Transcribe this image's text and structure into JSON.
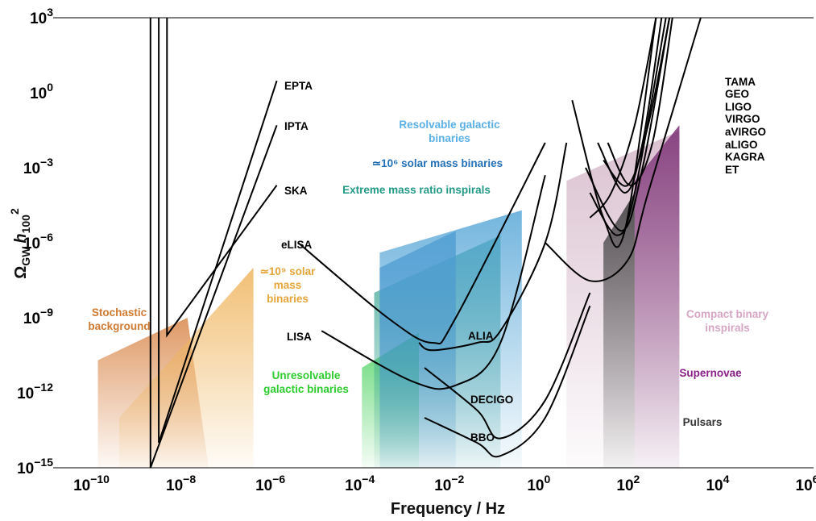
{
  "chart_data": {
    "type": "area",
    "xlabel": "Frequency / Hz",
    "ylabel_parts": {
      "omega": "Ω",
      "sub": "GW",
      "h": "h",
      "hsub": "100",
      "sup": "2"
    },
    "x_scale": "log",
    "y_scale": "log",
    "xlim": [
      1e-11,
      1000000.0
    ],
    "ylim": [
      1e-15,
      1000.0
    ],
    "x_ticks": [
      {
        "base": "10",
        "exp": "−10",
        "value": 1e-10
      },
      {
        "base": "10",
        "exp": "−8",
        "value": 1e-08
      },
      {
        "base": "10",
        "exp": "−6",
        "value": 1e-06
      },
      {
        "base": "10",
        "exp": "−4",
        "value": 0.0001
      },
      {
        "base": "10",
        "exp": "−2",
        "value": 0.01
      },
      {
        "base": "10",
        "exp": "0",
        "value": 1
      },
      {
        "base": "10",
        "exp": "2",
        "value": 100.0
      },
      {
        "base": "10",
        "exp": "4",
        "value": 10000.0
      },
      {
        "base": "10",
        "exp": "6",
        "value": 1000000.0
      }
    ],
    "y_ticks": [
      {
        "base": "10",
        "exp": "−15",
        "value": 1e-15
      },
      {
        "base": "10",
        "exp": "−12",
        "value": 1e-12
      },
      {
        "base": "10",
        "exp": "−9",
        "value": 1e-09
      },
      {
        "base": "10",
        "exp": "−6",
        "value": 1e-06
      },
      {
        "base": "10",
        "exp": "−3",
        "value": 0.001
      },
      {
        "base": "10",
        "exp": "0",
        "value": 1
      },
      {
        "base": "10",
        "exp": "3",
        "value": 1000.0
      }
    ],
    "regions": [
      {
        "name": "Stochastic background",
        "color": "#d9874a",
        "label_lines": [
          "Stochastic",
          "background"
        ],
        "points": [
          [
            1e-10,
            2e-11
          ],
          [
            1e-08,
            1e-09
          ],
          [
            3e-08,
            1e-15
          ],
          [
            1e-10,
            1e-15
          ]
        ]
      },
      {
        "name": "≃10^9 solar mass binaries",
        "color": "#efb45c",
        "label_lines": [
          "≃10⁹ solar",
          "mass",
          "binaries"
        ],
        "points": [
          [
            3e-10,
            1e-13
          ],
          [
            3e-07,
            1e-07
          ],
          [
            3e-07,
            1e-15
          ],
          [
            3e-10,
            1e-15
          ]
        ]
      },
      {
        "name": "Unresolvable galactic binaries",
        "color": "#3fcf55",
        "label_lines": [
          "Unresolvable",
          "galactic binaries"
        ],
        "points": [
          [
            8e-05,
            1e-11
          ],
          [
            0.0015,
            2.5e-10
          ],
          [
            0.0015,
            1e-15
          ],
          [
            8e-05,
            1e-15
          ]
        ]
      },
      {
        "name": "Extreme mass ratio inspirals",
        "color": "#2e9e8c",
        "label_lines": [
          "Extreme mass ratio inspirals"
        ],
        "points": [
          [
            0.00015,
            1e-08
          ],
          [
            0.1,
            2e-06
          ],
          [
            0.1,
            1e-15
          ],
          [
            0.00015,
            1e-15
          ]
        ]
      },
      {
        "name": "≃10^6 solar mass binaries",
        "color": "#2f7fc2",
        "label_lines": [
          "≃10⁶ solar mass binaries"
        ],
        "points": [
          [
            0.0002,
            1e-07
          ],
          [
            0.01,
            3e-06
          ],
          [
            0.01,
            1e-15
          ],
          [
            0.0002,
            1e-15
          ]
        ]
      },
      {
        "name": "Resolvable galactic binaries",
        "color": "#5aa8d8",
        "label_lines": [
          "Resolvable galactic",
          "binaries"
        ],
        "points": [
          [
            0.0002,
            4e-07
          ],
          [
            0.3,
            2e-05
          ],
          [
            0.3,
            1e-15
          ],
          [
            0.0002,
            1e-15
          ]
        ]
      },
      {
        "name": "Compact binary inspirals",
        "color": "#d4b6c8",
        "label_lines": [
          "Compact binary",
          "inspirals"
        ],
        "points": [
          [
            3,
            0.0003
          ],
          [
            1000,
            0.03
          ],
          [
            1000,
            1e-15
          ],
          [
            3,
            1e-15
          ]
        ]
      },
      {
        "name": "Pulsars",
        "color": "#3a3a3a",
        "label_lines": [
          "Pulsars"
        ],
        "points": [
          [
            20,
            1e-06
          ],
          [
            100,
            0.0001
          ],
          [
            100,
            1e-15
          ],
          [
            20,
            1e-15
          ]
        ]
      },
      {
        "name": "Supernovae",
        "color": "#7a2e74",
        "label_lines": [
          "Supernovae"
        ],
        "points": [
          [
            100,
            0.0003
          ],
          [
            1000,
            0.05
          ],
          [
            1000,
            1e-15
          ],
          [
            100,
            1e-15
          ]
        ]
      }
    ],
    "curves": [
      {
        "name": "EPTA",
        "label": "EPTA",
        "points": [
          [
            2.3e-09,
            1000.0
          ],
          [
            2.3e-09,
            1e-14
          ],
          [
            1e-06,
            3
          ]
        ]
      },
      {
        "name": "IPTA",
        "label": "IPTA",
        "points": [
          [
            1.5e-09,
            1000.0
          ],
          [
            1.5e-09,
            1e-15
          ],
          [
            1e-06,
            0.05
          ]
        ]
      },
      {
        "name": "SKA",
        "label": "SKA",
        "points": [
          [
            3.5e-09,
            1000.0
          ],
          [
            3.5e-09,
            2e-10
          ],
          [
            1e-06,
            0.0002
          ]
        ]
      },
      {
        "name": "eLISA",
        "label": "eLISA",
        "points": [
          [
            3e-06,
            1e-06
          ],
          [
            0.0003,
            1e-09
          ],
          [
            0.003,
            1e-10
          ],
          [
            0.01,
            1e-09
          ],
          [
            1,
            0.01
          ]
        ]
      },
      {
        "name": "LISA",
        "label": "LISA",
        "points": [
          [
            1e-05,
            3e-10
          ],
          [
            0.001,
            3e-12
          ],
          [
            0.01,
            2e-12
          ],
          [
            0.1,
            1e-10
          ],
          [
            1,
            0.0005
          ]
        ]
      },
      {
        "name": "ALIA",
        "label": "ALIA",
        "points": [
          [
            0.0015,
            1e-10
          ],
          [
            0.003,
            5e-11
          ],
          [
            0.03,
            1e-10
          ],
          [
            0.1,
            3e-10
          ],
          [
            1,
            1e-06
          ],
          [
            3,
            0.01
          ]
        ]
      },
      {
        "name": "DECIGO",
        "label": "DECIGO",
        "points": [
          [
            0.002,
            1e-11
          ],
          [
            0.03,
            2e-13
          ],
          [
            0.1,
            1.5e-14
          ],
          [
            1,
            5e-13
          ],
          [
            10,
            1e-08
          ]
        ]
      },
      {
        "name": "BBO",
        "label": "BBO",
        "points": [
          [
            0.002,
            1e-13
          ],
          [
            0.03,
            1e-14
          ],
          [
            0.1,
            3e-15
          ],
          [
            1,
            1e-13
          ],
          [
            10,
            3e-09
          ]
        ]
      },
      {
        "name": "TAMA",
        "label": "TAMA",
        "points": [
          [
            10,
            1e-05
          ],
          [
            30,
            0.0001
          ],
          [
            100,
            0.05
          ],
          [
            300,
            1000.0
          ]
        ]
      },
      {
        "name": "GEO",
        "label": "GEO",
        "points": [
          [
            15,
            0.01
          ],
          [
            60,
            0.0001
          ],
          [
            150,
            0.01
          ],
          [
            400,
            1000.0
          ]
        ]
      },
      {
        "name": "LIGO",
        "label": "LIGO",
        "points": [
          [
            20,
            0.002
          ],
          [
            70,
            0.0002
          ],
          [
            200,
            0.05
          ],
          [
            600,
            1000.0
          ]
        ]
      },
      {
        "name": "VIRGO",
        "label": "VIRGO",
        "points": [
          [
            25,
            0.01
          ],
          [
            80,
            0.0002
          ],
          [
            250,
            0.01
          ],
          [
            700,
            1000.0
          ]
        ]
      },
      {
        "name": "aVIRGO",
        "label": "aVIRGO",
        "points": [
          [
            10,
            0.0001
          ],
          [
            40,
            2e-06
          ],
          [
            100,
            0.0001
          ],
          [
            500,
            1000.0
          ]
        ]
      },
      {
        "name": "aLIGO",
        "label": "aLIGO",
        "points": [
          [
            8,
            0.001
          ],
          [
            50,
            3e-06
          ],
          [
            150,
            0.001
          ],
          [
            600,
            1000.0
          ]
        ]
      },
      {
        "name": "KAGRA",
        "label": "KAGRA",
        "points": [
          [
            4,
            0.5
          ],
          [
            20,
            1e-05
          ],
          [
            60,
            3e-06
          ],
          [
            300,
            1000.0
          ]
        ]
      },
      {
        "name": "ET",
        "label": "ET",
        "points": [
          [
            1,
            1e-06
          ],
          [
            10,
            3e-08
          ],
          [
            70,
            2e-07
          ],
          [
            200,
            0.0001
          ],
          [
            3000,
            1000.0
          ]
        ]
      }
    ],
    "label_colors": {
      "detector": "#000000",
      "Stochastic background": "#d07a32",
      "≃10^9 solar mass binaries": "#e5a53a",
      "Unresolvable galactic binaries": "#2ecc2e",
      "Extreme mass ratio inspirals": "#239a86",
      "≃10^6 solar mass binaries": "#2270b8",
      "Resolvable galactic binaries": "#5ab0e6",
      "Compact binary inspirals": "#d6a6c4",
      "Supernovae": "#8a1f88",
      "Pulsars": "#333333"
    }
  }
}
